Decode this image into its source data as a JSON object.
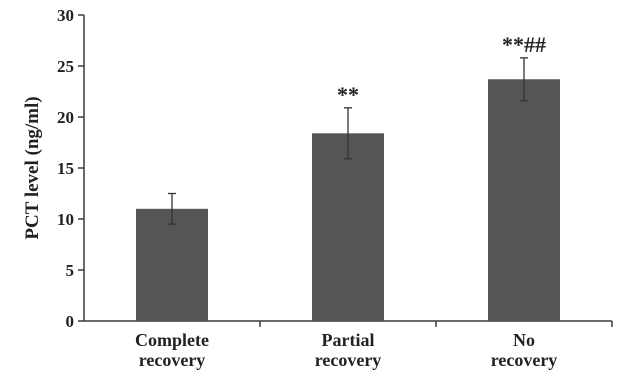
{
  "chart_data": {
    "type": "bar",
    "categories": [
      [
        "Complete",
        "recovery"
      ],
      [
        "Partial",
        "recovery"
      ],
      [
        "No",
        "recovery"
      ]
    ],
    "values": [
      11.0,
      18.4,
      23.7
    ],
    "errors": [
      1.5,
      2.5,
      2.1
    ],
    "annotations": [
      "",
      "**",
      "**##"
    ],
    "ylabel": "PCT level (ng/ml)",
    "xlabel": "",
    "ylim": [
      0,
      30
    ],
    "yticks": [
      0,
      5,
      10,
      15,
      20,
      25,
      30
    ],
    "bar_color": "#555555",
    "grid": false,
    "legend": "none"
  }
}
